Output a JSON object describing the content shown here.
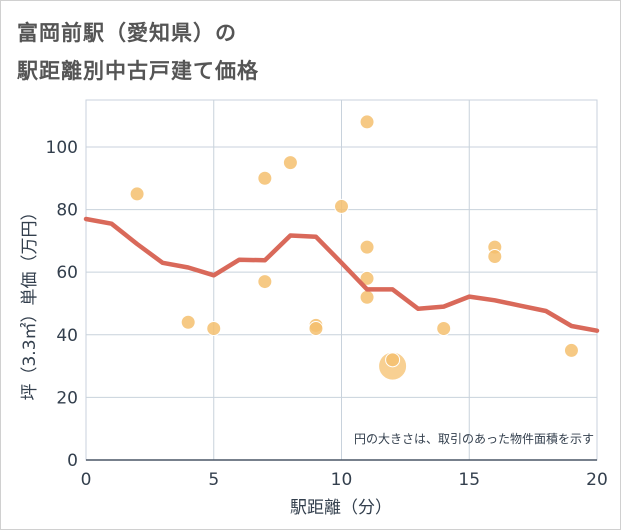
{
  "chart_data": {
    "type": "scatter",
    "title_line1": "富岡前駅（愛知県）の",
    "title_line2": "駅距離別中古戸建て価格",
    "xlabel": "駅距離（分）",
    "ylabel": "坪（3.3㎡）単価（万円）",
    "xlim": [
      0,
      20
    ],
    "ylim": [
      0,
      115
    ],
    "xticks": [
      "0",
      "5",
      "10",
      "15",
      "20"
    ],
    "xtick_values": [
      0,
      5,
      10,
      15,
      20
    ],
    "yticks": [
      "0",
      "20",
      "40",
      "60",
      "80",
      "100"
    ],
    "ytick_values": [
      0,
      20,
      40,
      60,
      80,
      100
    ],
    "grid": true,
    "note": "円の大きさは、取引のあった物件面積を示す",
    "points": [
      {
        "x": 2,
        "y": 85,
        "size": 1
      },
      {
        "x": 4,
        "y": 44,
        "size": 1
      },
      {
        "x": 5,
        "y": 42,
        "size": 1
      },
      {
        "x": 7,
        "y": 90,
        "size": 1
      },
      {
        "x": 7,
        "y": 57,
        "size": 1
      },
      {
        "x": 8,
        "y": 95,
        "size": 1
      },
      {
        "x": 9,
        "y": 43,
        "size": 1
      },
      {
        "x": 9,
        "y": 42,
        "size": 1
      },
      {
        "x": 10,
        "y": 81,
        "size": 1
      },
      {
        "x": 11,
        "y": 108,
        "size": 1
      },
      {
        "x": 11,
        "y": 68,
        "size": 1
      },
      {
        "x": 11,
        "y": 58,
        "size": 1
      },
      {
        "x": 11,
        "y": 52,
        "size": 1
      },
      {
        "x": 12,
        "y": 30,
        "size": 4
      },
      {
        "x": 12,
        "y": 32,
        "size": 1
      },
      {
        "x": 14,
        "y": 42,
        "size": 1
      },
      {
        "x": 16,
        "y": 68,
        "size": 1
      },
      {
        "x": 16,
        "y": 65,
        "size": 1
      },
      {
        "x": 19,
        "y": 35,
        "size": 1
      }
    ],
    "trend": {
      "name": "平均",
      "x": [
        0,
        1,
        2,
        3,
        4,
        5,
        6,
        7,
        8,
        9,
        10,
        11,
        12,
        13,
        14,
        15,
        16,
        17,
        18,
        19,
        20
      ],
      "y": [
        77,
        75.5,
        69,
        63,
        61.5,
        59,
        64,
        63.8,
        71.7,
        71.3,
        63,
        54.5,
        54.5,
        48.3,
        49,
        52.2,
        51,
        49.3,
        47.6,
        42.8,
        41.3
      ]
    },
    "colors": {
      "bubble": "#f5c06e",
      "bubble_edge": "#ffffff",
      "trend": "#d9695a",
      "grid": "#c8d2dc",
      "axis_text": "#333f4d"
    }
  }
}
